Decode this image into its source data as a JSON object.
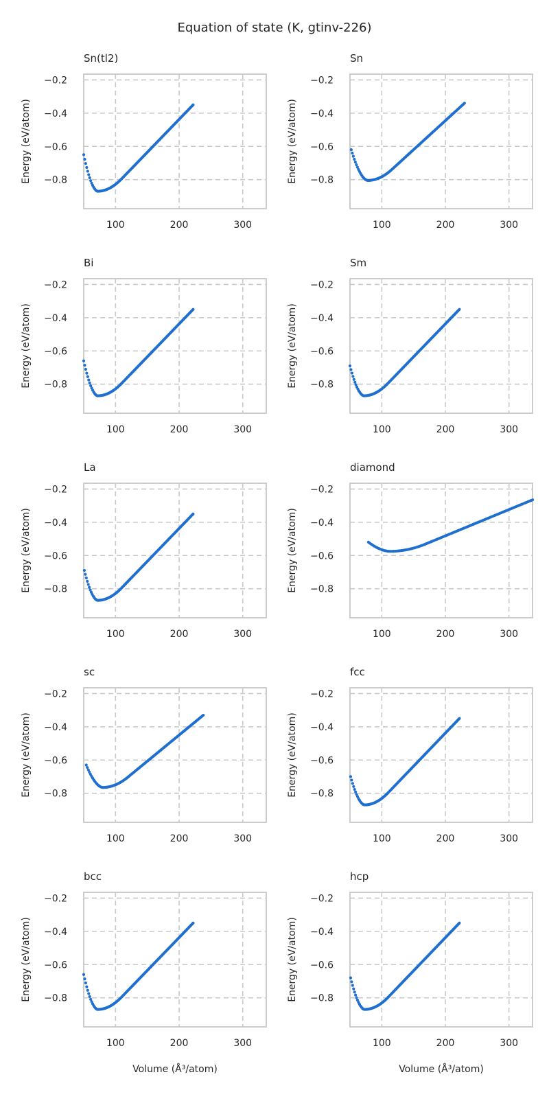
{
  "figure": {
    "title": "Equation of state (K, gtinv-226)",
    "ylabel": "Energy (eV/atom)",
    "xlabel": "Volume (Å$^3$/atom)",
    "xlabel_display": "Volume (Å³/atom)"
  },
  "colors": {
    "marker": "#1f6fd0",
    "grid": "#c8c8c8",
    "spine": "#cccccc"
  },
  "chart_data": [
    {
      "type": "scatter",
      "title": "Sn(tl2)",
      "xlim": [
        50,
        337
      ],
      "ylim": [
        -0.975,
        -0.165
      ],
      "xticks": [
        100,
        200,
        300
      ],
      "yticks": [
        -0.2,
        -0.4,
        -0.6,
        -0.8
      ],
      "grid": true,
      "curve": {
        "v_start": 50,
        "v_min": 72,
        "e_min": -0.87,
        "e_start": -0.65,
        "v_end": 222,
        "e_end": -0.35
      }
    },
    {
      "type": "scatter",
      "title": "Sn",
      "xlim": [
        50,
        337
      ],
      "ylim": [
        -0.975,
        -0.165
      ],
      "xticks": [
        100,
        200,
        300
      ],
      "yticks": [
        -0.2,
        -0.4,
        -0.6,
        -0.8
      ],
      "grid": true,
      "curve": {
        "v_start": 52,
        "v_min": 78,
        "e_min": -0.805,
        "e_start": -0.62,
        "v_end": 230,
        "e_end": -0.34
      }
    },
    {
      "type": "scatter",
      "title": "Bi",
      "xlim": [
        50,
        337
      ],
      "ylim": [
        -0.975,
        -0.165
      ],
      "xticks": [
        100,
        200,
        300
      ],
      "yticks": [
        -0.2,
        -0.4,
        -0.6,
        -0.8
      ],
      "grid": true,
      "curve": {
        "v_start": 50,
        "v_min": 72,
        "e_min": -0.87,
        "e_start": -0.66,
        "v_end": 222,
        "e_end": -0.35
      }
    },
    {
      "type": "scatter",
      "title": "Sm",
      "xlim": [
        50,
        337
      ],
      "ylim": [
        -0.975,
        -0.165
      ],
      "xticks": [
        100,
        200,
        300
      ],
      "yticks": [
        -0.2,
        -0.4,
        -0.6,
        -0.8
      ],
      "grid": true,
      "curve": {
        "v_start": 50,
        "v_min": 72,
        "e_min": -0.87,
        "e_start": -0.69,
        "v_end": 222,
        "e_end": -0.35
      }
    },
    {
      "type": "scatter",
      "title": "La",
      "xlim": [
        50,
        337
      ],
      "ylim": [
        -0.975,
        -0.165
      ],
      "xticks": [
        100,
        200,
        300
      ],
      "yticks": [
        -0.2,
        -0.4,
        -0.6,
        -0.8
      ],
      "grid": true,
      "curve": {
        "v_start": 51,
        "v_min": 72,
        "e_min": -0.87,
        "e_start": -0.69,
        "v_end": 222,
        "e_end": -0.35
      }
    },
    {
      "type": "scatter",
      "title": "diamond",
      "xlim": [
        50,
        337
      ],
      "ylim": [
        -0.975,
        -0.165
      ],
      "xticks": [
        100,
        200,
        300
      ],
      "yticks": [
        -0.2,
        -0.4,
        -0.6,
        -0.8
      ],
      "grid": true,
      "curve": {
        "v_start": 79,
        "v_min": 113,
        "e_min": -0.575,
        "e_start": -0.52,
        "v_end": 337,
        "e_end": -0.265
      }
    },
    {
      "type": "scatter",
      "title": "sc",
      "xlim": [
        50,
        337
      ],
      "ylim": [
        -0.975,
        -0.165
      ],
      "xticks": [
        100,
        200,
        300
      ],
      "yticks": [
        -0.2,
        -0.4,
        -0.6,
        -0.8
      ],
      "grid": true,
      "curve": {
        "v_start": 54,
        "v_min": 80,
        "e_min": -0.765,
        "e_start": -0.63,
        "v_end": 238,
        "e_end": -0.33
      }
    },
    {
      "type": "scatter",
      "title": "fcc",
      "xlim": [
        50,
        337
      ],
      "ylim": [
        -0.975,
        -0.165
      ],
      "xticks": [
        100,
        200,
        300
      ],
      "yticks": [
        -0.2,
        -0.4,
        -0.6,
        -0.8
      ],
      "grid": true,
      "curve": {
        "v_start": 51,
        "v_min": 73,
        "e_min": -0.87,
        "e_start": -0.7,
        "v_end": 222,
        "e_end": -0.35
      }
    },
    {
      "type": "scatter",
      "title": "bcc",
      "xlim": [
        50,
        337
      ],
      "ylim": [
        -0.975,
        -0.165
      ],
      "xticks": [
        100,
        200,
        300
      ],
      "yticks": [
        -0.2,
        -0.4,
        -0.6,
        -0.8
      ],
      "grid": true,
      "curve": {
        "v_start": 50,
        "v_min": 72,
        "e_min": -0.87,
        "e_start": -0.66,
        "v_end": 222,
        "e_end": -0.35
      }
    },
    {
      "type": "scatter",
      "title": "hcp",
      "xlim": [
        50,
        337
      ],
      "ylim": [
        -0.975,
        -0.165
      ],
      "xticks": [
        100,
        200,
        300
      ],
      "yticks": [
        -0.2,
        -0.4,
        -0.6,
        -0.8
      ],
      "grid": true,
      "curve": {
        "v_start": 51,
        "v_min": 73,
        "e_min": -0.87,
        "e_start": -0.68,
        "v_end": 222,
        "e_end": -0.35
      }
    }
  ]
}
